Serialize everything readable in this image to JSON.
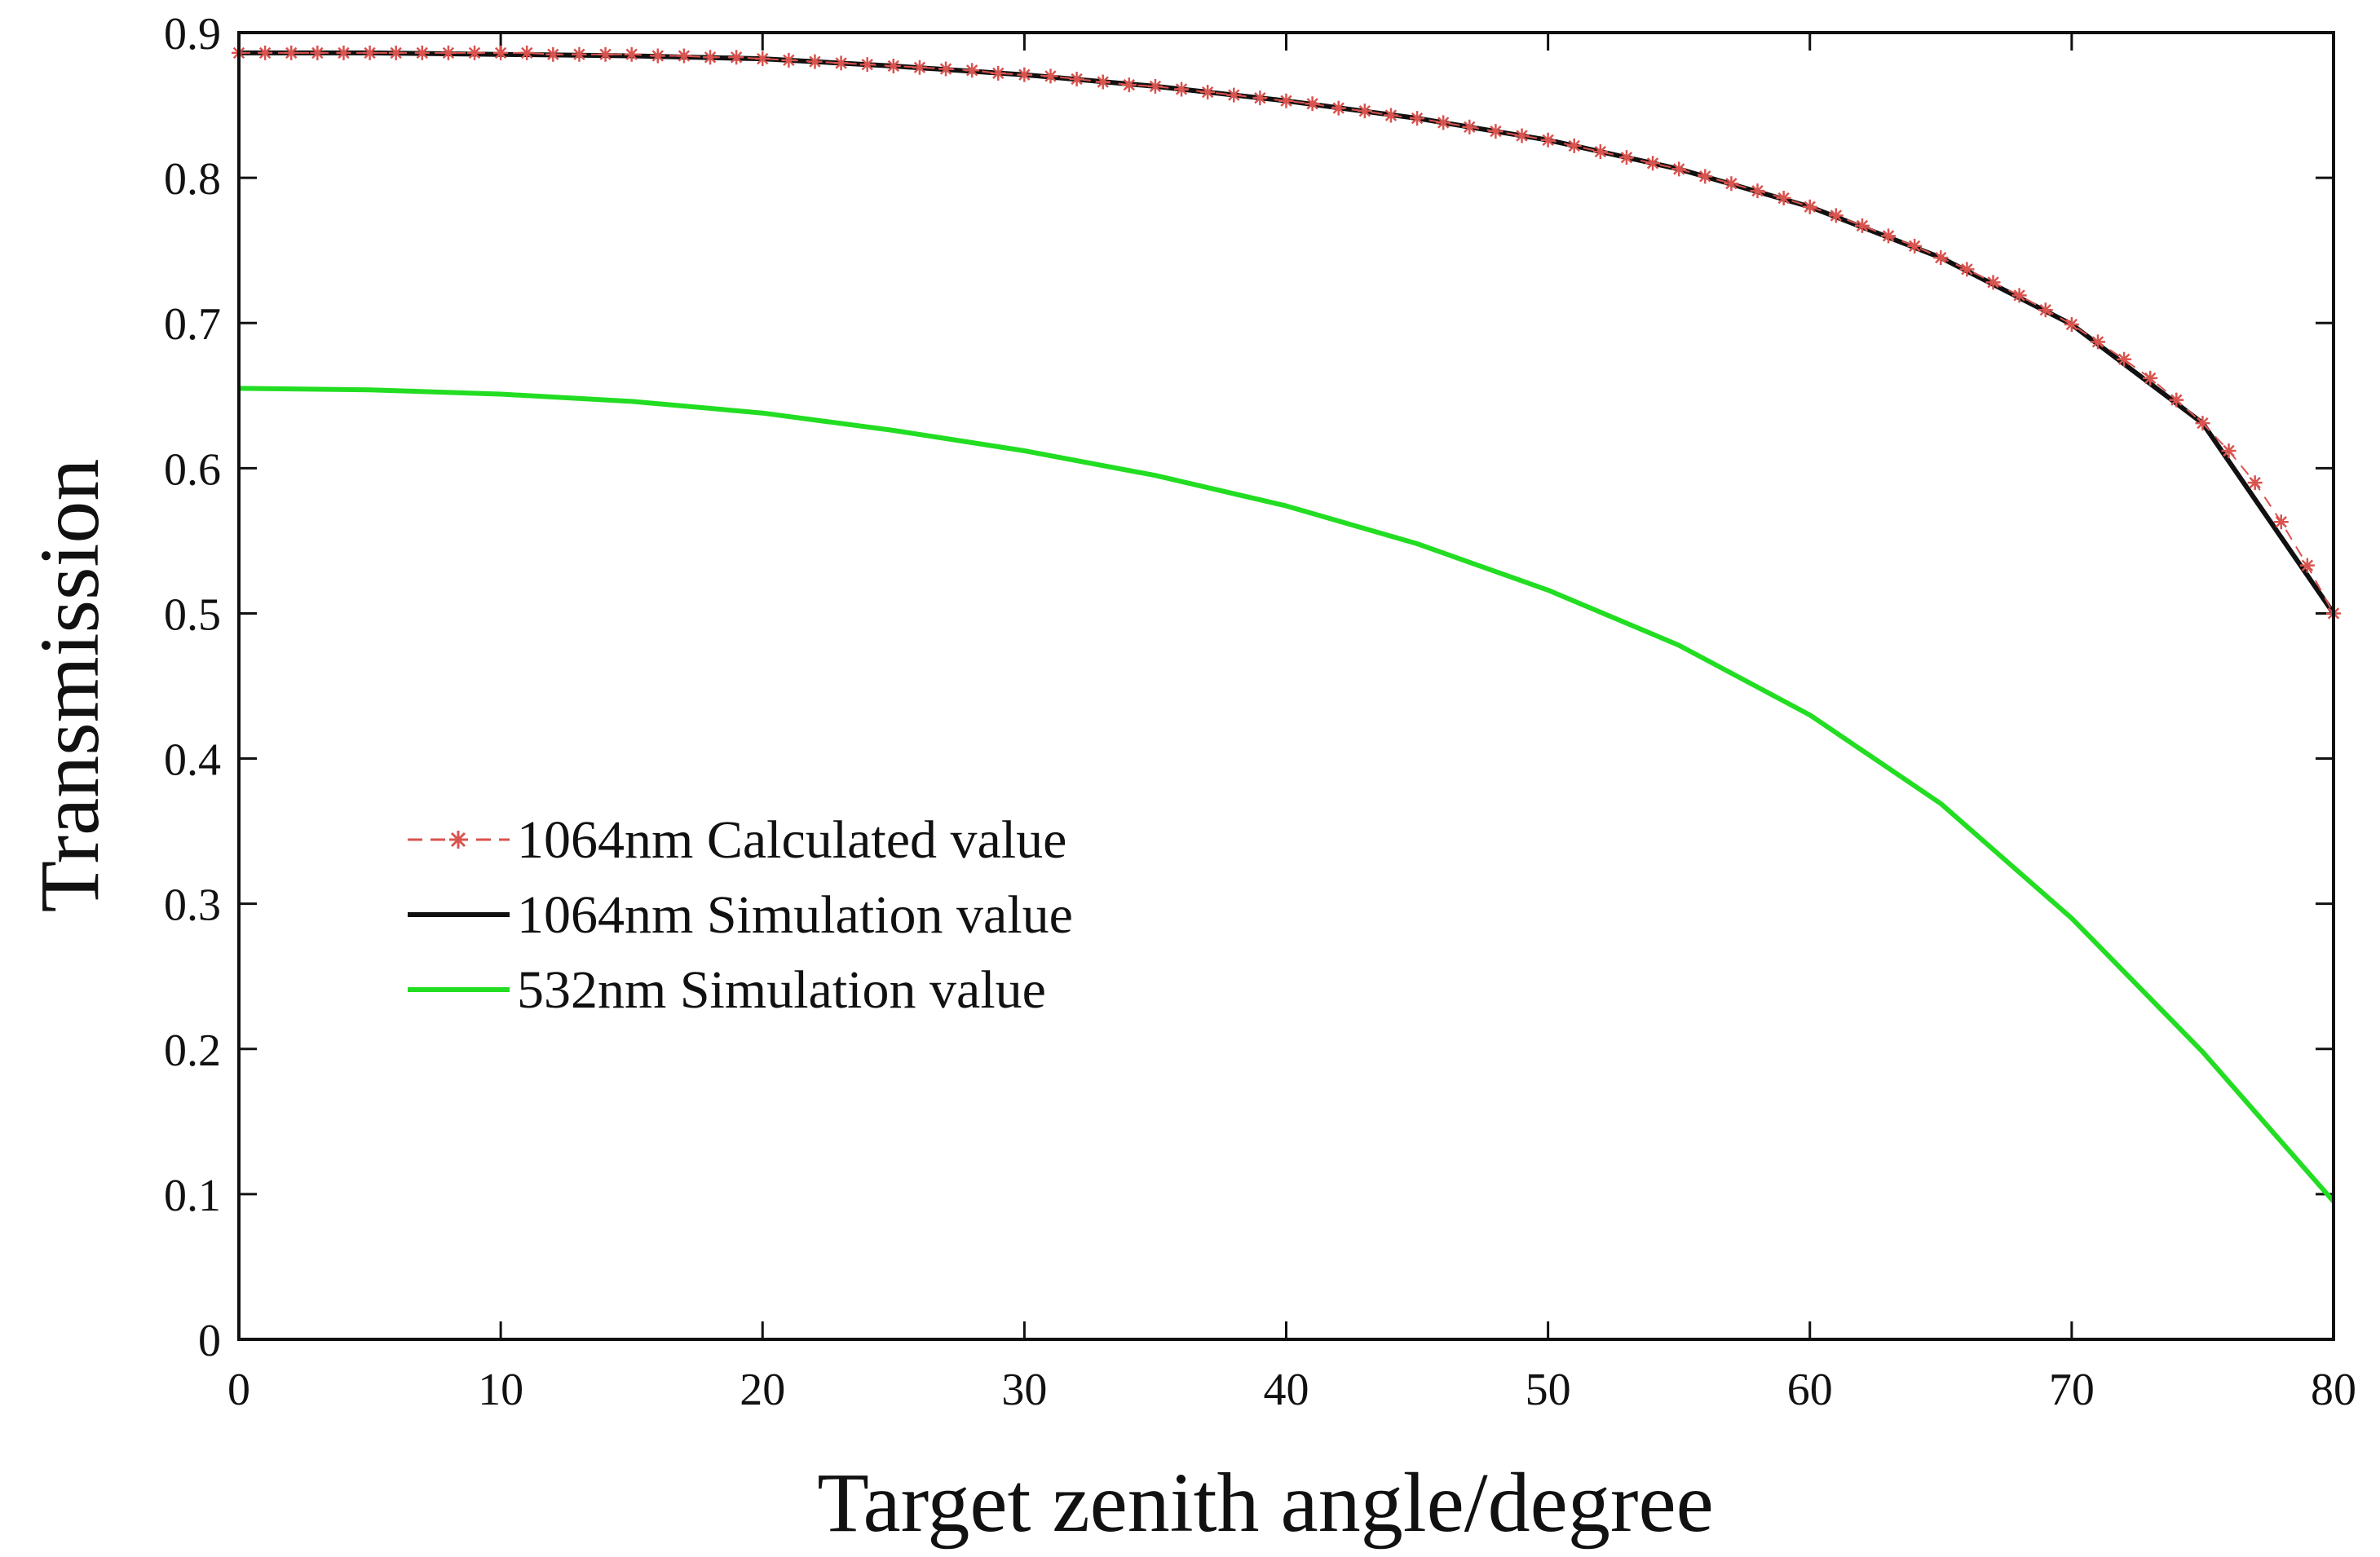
{
  "chart_data": {
    "type": "line",
    "title": "",
    "xlabel": "Target zenith angle/degree",
    "ylabel": "Transmission",
    "xlim": [
      0,
      80
    ],
    "ylim": [
      0,
      0.9
    ],
    "xticks": [
      "0",
      "10",
      "20",
      "30",
      "40",
      "50",
      "60",
      "70",
      "80"
    ],
    "yticks": [
      "0",
      "0.1",
      "0.2",
      "0.3",
      "0.4",
      "0.5",
      "0.6",
      "0.7",
      "0.8",
      "0.9"
    ],
    "grid": false,
    "legend_position": "center-left",
    "series": [
      {
        "name": "1064nm Calculated value",
        "style": "dashed-star",
        "color": "#d9534f",
        "x": [
          0,
          1,
          2,
          3,
          4,
          5,
          6,
          7,
          8,
          9,
          10,
          11,
          12,
          13,
          14,
          15,
          16,
          17,
          18,
          19,
          20,
          21,
          22,
          23,
          24,
          25,
          26,
          27,
          28,
          29,
          30,
          31,
          32,
          33,
          34,
          35,
          36,
          37,
          38,
          39,
          40,
          41,
          42,
          43,
          44,
          45,
          46,
          47,
          48,
          49,
          50,
          51,
          52,
          53,
          54,
          55,
          56,
          57,
          58,
          59,
          60,
          61,
          62,
          63,
          64,
          65,
          66,
          67,
          68,
          69,
          70,
          71,
          72,
          73,
          74,
          75,
          76,
          77,
          78,
          79,
          80
        ],
        "values": [
          0.886,
          0.886,
          0.886,
          0.886,
          0.886,
          0.886,
          0.886,
          0.886,
          0.886,
          0.886,
          0.886,
          0.886,
          0.885,
          0.885,
          0.885,
          0.885,
          0.884,
          0.884,
          0.883,
          0.883,
          0.882,
          0.881,
          0.88,
          0.879,
          0.878,
          0.877,
          0.876,
          0.875,
          0.874,
          0.872,
          0.871,
          0.87,
          0.868,
          0.866,
          0.864,
          0.863,
          0.861,
          0.859,
          0.857,
          0.855,
          0.853,
          0.851,
          0.848,
          0.846,
          0.843,
          0.841,
          0.838,
          0.835,
          0.832,
          0.829,
          0.826,
          0.822,
          0.818,
          0.814,
          0.81,
          0.806,
          0.801,
          0.796,
          0.791,
          0.786,
          0.78,
          0.774,
          0.767,
          0.76,
          0.753,
          0.745,
          0.737,
          0.728,
          0.719,
          0.709,
          0.699,
          0.687,
          0.675,
          0.662,
          0.647,
          0.631,
          0.612,
          0.59,
          0.563,
          0.533,
          0.5
        ]
      },
      {
        "name": "1064nm Simulation value",
        "style": "solid",
        "color": "#111111",
        "x": [
          0,
          5,
          10,
          15,
          20,
          25,
          30,
          35,
          40,
          45,
          50,
          55,
          60,
          65,
          70,
          75,
          80
        ],
        "values": [
          0.886,
          0.886,
          0.885,
          0.884,
          0.882,
          0.877,
          0.871,
          0.863,
          0.853,
          0.841,
          0.826,
          0.806,
          0.78,
          0.745,
          0.699,
          0.631,
          0.5
        ]
      },
      {
        "name": "532nm Simulation value",
        "style": "solid",
        "color": "#22dd22",
        "x": [
          0,
          5,
          10,
          15,
          20,
          25,
          30,
          35,
          40,
          45,
          50,
          55,
          60,
          65,
          70,
          75,
          80
        ],
        "values": [
          0.655,
          0.654,
          0.651,
          0.646,
          0.638,
          0.626,
          0.612,
          0.595,
          0.574,
          0.548,
          0.516,
          0.478,
          0.43,
          0.369,
          0.29,
          0.198,
          0.095
        ]
      }
    ]
  }
}
